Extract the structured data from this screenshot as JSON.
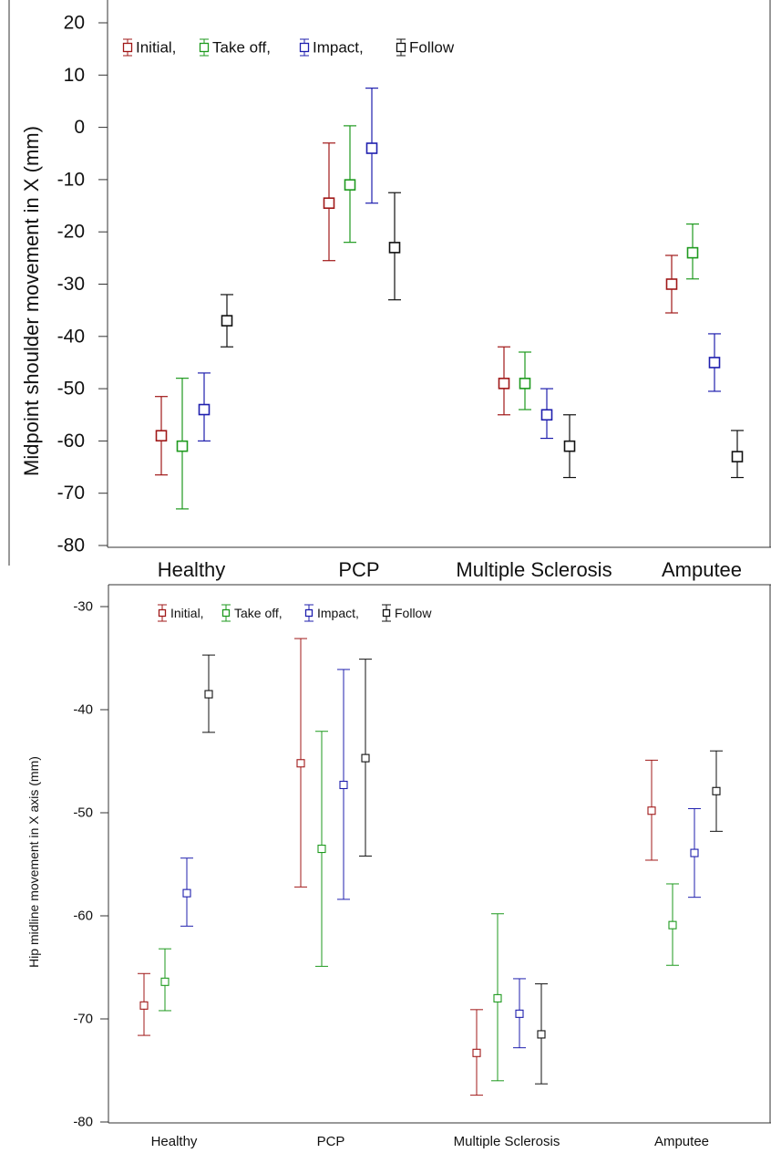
{
  "colors": {
    "Initial": "#a01818",
    "Take off": "#1e9a1e",
    "Impact": "#1f1fae",
    "Follow": "#111111"
  },
  "chart_data": [
    {
      "type": "scatter",
      "error_bars": true,
      "title": "",
      "xlabel": "",
      "ylabel": "Midpoint shoulder movement in X (mm)",
      "ylim": [
        -80,
        20
      ],
      "yticks": [
        "20",
        "10",
        "0",
        "-10",
        "-20",
        "-30",
        "-40",
        "-50",
        "-60",
        "-70",
        "-80"
      ],
      "categories": [
        "Healthy",
        "PCP",
        "Multiple Sclerosis",
        "Amputee"
      ],
      "legend_position": "top-left",
      "legend_labels": [
        "Initial,",
        "Take off,",
        "Impact,",
        "Follow"
      ],
      "series": [
        {
          "name": "Initial",
          "values": [
            -59,
            -14.5,
            -49,
            -30
          ],
          "lower": [
            -66.5,
            -25.5,
            -55,
            -35.5
          ],
          "upper": [
            -51.5,
            -3,
            -42,
            -24.5
          ]
        },
        {
          "name": "Take off",
          "values": [
            -61,
            -11,
            -49,
            -24
          ],
          "lower": [
            -73,
            -22,
            -54,
            -29
          ],
          "upper": [
            -48,
            0.3,
            -43,
            -18.5
          ]
        },
        {
          "name": "Impact",
          "values": [
            -54,
            -4,
            -55,
            -45
          ],
          "lower": [
            -60,
            -14.5,
            -59.5,
            -50.5
          ],
          "upper": [
            -47,
            7.5,
            -50,
            -39.5
          ]
        },
        {
          "name": "Follow",
          "values": [
            -37,
            -23,
            -61,
            -63
          ],
          "lower": [
            -42,
            -33,
            -67,
            -67
          ],
          "upper": [
            -32,
            -12.5,
            -55,
            -58
          ]
        }
      ]
    },
    {
      "type": "scatter",
      "error_bars": true,
      "title": "",
      "xlabel": "",
      "ylabel": "Hip midline movement in X axis (mm)",
      "ylim": [
        -80,
        -30
      ],
      "yticks": [
        "-30",
        "-40",
        "-50",
        "-60",
        "-70",
        "-80"
      ],
      "categories": [
        "Healthy",
        "PCP",
        "Multiple Sclerosis",
        "Amputee"
      ],
      "legend_position": "top-left",
      "legend_labels": [
        "Initial,",
        "Take off,",
        "Impact,",
        "Follow"
      ],
      "series": [
        {
          "name": "Initial",
          "values": [
            -68.7,
            -45.2,
            -73.3,
            -49.8
          ],
          "lower": [
            -71.6,
            -57.2,
            -77.4,
            -54.6
          ],
          "upper": [
            -65.6,
            -33.1,
            -69.1,
            -44.9
          ]
        },
        {
          "name": "Take off",
          "values": [
            -66.4,
            -53.5,
            -68,
            -60.9
          ],
          "lower": [
            -69.2,
            -64.9,
            -76,
            -64.8
          ],
          "upper": [
            -63.2,
            -42.1,
            -59.8,
            -56.9
          ]
        },
        {
          "name": "Impact",
          "values": [
            -57.8,
            -47.3,
            -69.5,
            -53.9
          ],
          "lower": [
            -61,
            -58.4,
            -72.8,
            -58.2
          ],
          "upper": [
            -54.4,
            -36.1,
            -66.1,
            -49.6
          ]
        },
        {
          "name": "Follow",
          "values": [
            -38.5,
            -44.7,
            -71.5,
            -47.9
          ],
          "lower": [
            -42.2,
            -54.2,
            -76.3,
            -51.8
          ],
          "upper": [
            -34.7,
            -35.1,
            -66.6,
            -44
          ]
        }
      ]
    }
  ]
}
